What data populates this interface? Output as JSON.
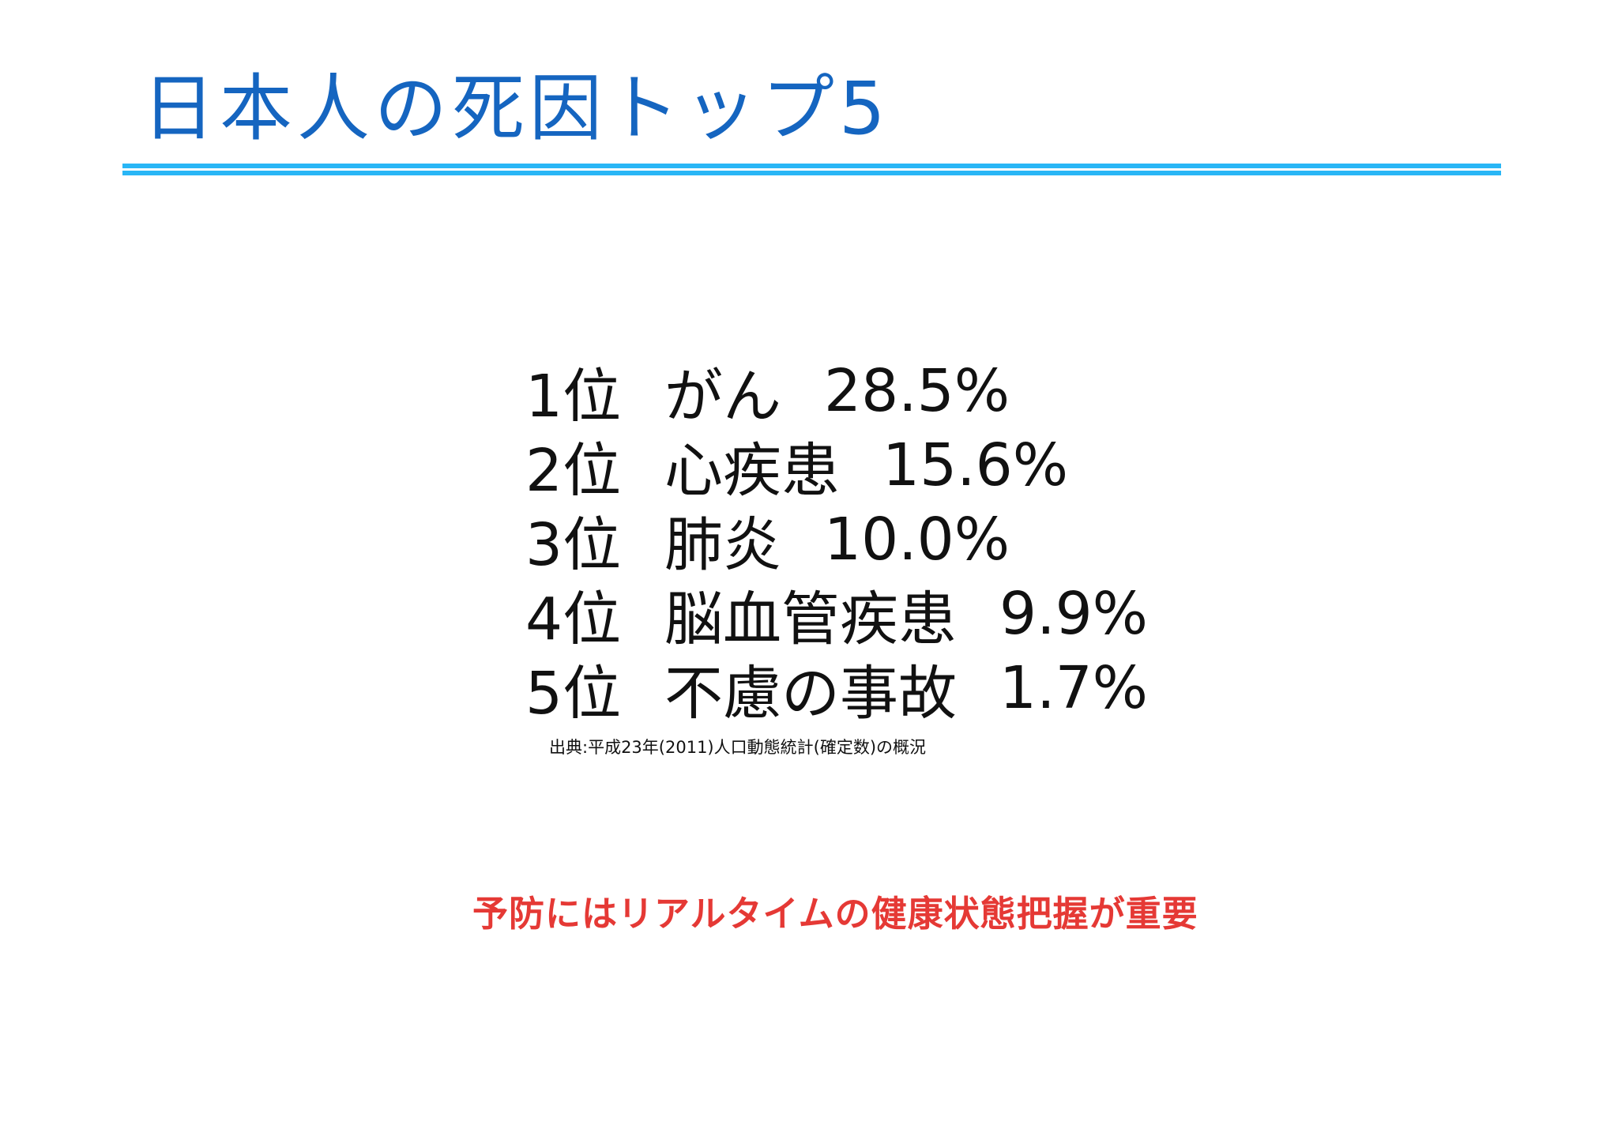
{
  "slide": {
    "title": "日本人の死因トップ5",
    "rankings": [
      {
        "rank": "1位",
        "cause": "がん",
        "percent": "28.5%"
      },
      {
        "rank": "2位",
        "cause": "心疾患",
        "percent": "15.6%"
      },
      {
        "rank": "3位",
        "cause": "肺炎",
        "percent": "10.0%"
      },
      {
        "rank": "4位",
        "cause": "脳血管疾患",
        "percent": "9.9%"
      },
      {
        "rank": "5位",
        "cause": "不慮の事故",
        "percent": "1.7%"
      }
    ],
    "source": "出典:平成23年(2011)人口動態統計(確定数)の概況",
    "message": "予防にはリアルタイムの健康状態把握が重要"
  },
  "colors": {
    "title": "#1565c0",
    "rule": "#29b6f6",
    "message": "#e53935",
    "body_text": "#111111"
  }
}
